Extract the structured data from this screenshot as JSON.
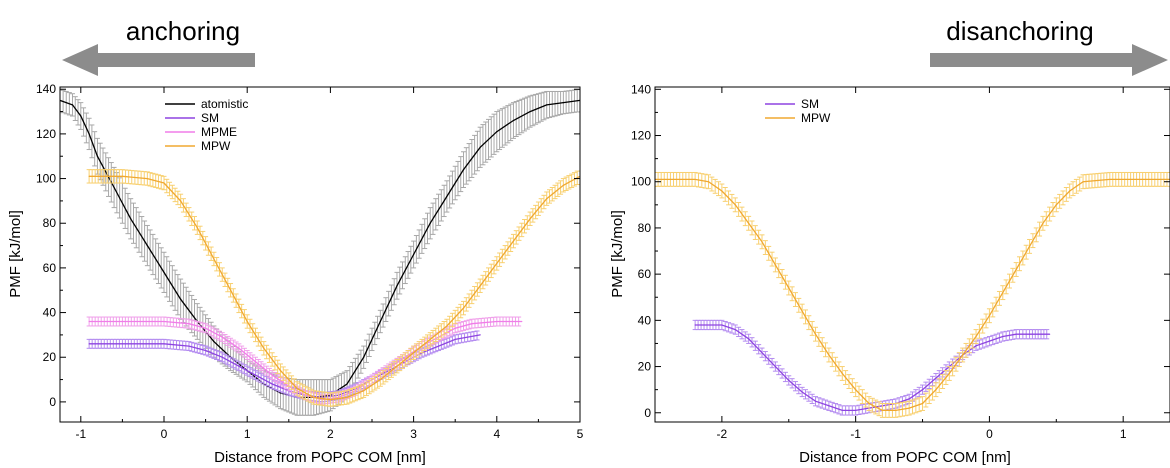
{
  "annotations": {
    "left_arrow_label": "anchoring",
    "right_arrow_label": "disanchoring",
    "arrow_color": "#8c8c8c"
  },
  "chart_data": [
    {
      "type": "line",
      "panel": "left",
      "xlabel": "Distance from POPC COM [nm]",
      "ylabel": "PMF [kJ/mol]",
      "xlim": [
        -1.25,
        5.0
      ],
      "ylim": [
        -9,
        141
      ],
      "xticks": [
        -1,
        0,
        1,
        2,
        3,
        4,
        5
      ],
      "yticks": [
        0,
        20,
        40,
        60,
        80,
        100,
        120,
        140
      ],
      "error_bars": true,
      "legend_position": "top-left",
      "series": [
        {
          "name": "atomistic",
          "color": "#000000",
          "error_color": "#a8a8a8",
          "points": [
            [
              -1.25,
              135
            ],
            [
              -1.1,
              133
            ],
            [
              -1.0,
              128
            ],
            [
              -0.9,
              120
            ],
            [
              -0.8,
              110
            ],
            [
              -0.6,
              96
            ],
            [
              -0.4,
              82
            ],
            [
              -0.2,
              70
            ],
            [
              0.0,
              58
            ],
            [
              0.2,
              46
            ],
            [
              0.4,
              36
            ],
            [
              0.6,
              27
            ],
            [
              0.8,
              20
            ],
            [
              1.0,
              14
            ],
            [
              1.2,
              8
            ],
            [
              1.4,
              4
            ],
            [
              1.6,
              2
            ],
            [
              1.8,
              2
            ],
            [
              2.0,
              3
            ],
            [
              2.2,
              8
            ],
            [
              2.4,
              20
            ],
            [
              2.6,
              36
            ],
            [
              2.8,
              52
            ],
            [
              3.0,
              66
            ],
            [
              3.2,
              80
            ],
            [
              3.4,
              92
            ],
            [
              3.6,
              104
            ],
            [
              3.8,
              114
            ],
            [
              4.0,
              121
            ],
            [
              4.2,
              126
            ],
            [
              4.4,
              130
            ],
            [
              4.6,
              133
            ],
            [
              4.8,
              134
            ],
            [
              5.0,
              135
            ]
          ],
          "errors": [
            5,
            5,
            6,
            7,
            8,
            9,
            9,
            9,
            9,
            9,
            8,
            7,
            6,
            5,
            6,
            7,
            8,
            8,
            7,
            6,
            5,
            5,
            6,
            6,
            7,
            7,
            8,
            9,
            9,
            8,
            7,
            6,
            5,
            5
          ]
        },
        {
          "name": "SM",
          "color": "#8e44e0",
          "error_color": "#b48cf0",
          "points": [
            [
              -0.9,
              26
            ],
            [
              -0.5,
              26
            ],
            [
              0.0,
              26
            ],
            [
              0.3,
              25
            ],
            [
              0.5,
              23
            ],
            [
              0.7,
              20
            ],
            [
              0.9,
              16
            ],
            [
              1.1,
              12
            ],
            [
              1.3,
              8
            ],
            [
              1.5,
              5
            ],
            [
              1.7,
              3
            ],
            [
              1.9,
              2
            ],
            [
              2.1,
              3
            ],
            [
              2.3,
              6
            ],
            [
              2.5,
              10
            ],
            [
              2.7,
              14
            ],
            [
              2.9,
              18
            ],
            [
              3.1,
              22
            ],
            [
              3.3,
              25
            ],
            [
              3.5,
              28
            ],
            [
              3.8,
              30
            ]
          ],
          "errors": [
            2,
            2,
            2,
            2,
            2,
            2,
            2,
            2,
            2,
            2,
            2,
            2,
            2,
            2,
            2,
            2,
            2,
            2,
            2,
            2,
            2
          ]
        },
        {
          "name": "MPME",
          "color": "#f07de8",
          "error_color": "#f0a0ea",
          "points": [
            [
              -0.9,
              36
            ],
            [
              -0.5,
              36
            ],
            [
              0.0,
              36
            ],
            [
              0.3,
              35
            ],
            [
              0.5,
              33
            ],
            [
              0.7,
              29
            ],
            [
              0.9,
              24
            ],
            [
              1.1,
              18
            ],
            [
              1.3,
              12
            ],
            [
              1.5,
              7
            ],
            [
              1.7,
              3
            ],
            [
              1.9,
              1
            ],
            [
              2.1,
              2
            ],
            [
              2.3,
              5
            ],
            [
              2.5,
              10
            ],
            [
              2.7,
              15
            ],
            [
              2.9,
              20
            ],
            [
              3.1,
              25
            ],
            [
              3.3,
              29
            ],
            [
              3.5,
              33
            ],
            [
              3.7,
              35
            ],
            [
              4.0,
              36
            ],
            [
              4.3,
              36
            ]
          ],
          "errors": [
            2,
            2,
            2,
            2,
            2,
            2,
            2,
            2,
            2,
            2,
            2,
            2,
            2,
            2,
            2,
            2,
            2,
            2,
            2,
            2,
            2,
            2,
            2
          ]
        },
        {
          "name": "MPW",
          "color": "#f0a830",
          "error_color": "#f8d070",
          "points": [
            [
              -0.9,
              101
            ],
            [
              -0.5,
              101
            ],
            [
              -0.2,
              100
            ],
            [
              0.0,
              98
            ],
            [
              0.2,
              90
            ],
            [
              0.4,
              78
            ],
            [
              0.6,
              64
            ],
            [
              0.8,
              50
            ],
            [
              1.0,
              36
            ],
            [
              1.2,
              24
            ],
            [
              1.4,
              14
            ],
            [
              1.6,
              6
            ],
            [
              1.8,
              2
            ],
            [
              2.0,
              1
            ],
            [
              2.2,
              2
            ],
            [
              2.4,
              5
            ],
            [
              2.6,
              10
            ],
            [
              2.8,
              16
            ],
            [
              3.0,
              22
            ],
            [
              3.2,
              28
            ],
            [
              3.4,
              34
            ],
            [
              3.6,
              42
            ],
            [
              3.8,
              52
            ],
            [
              4.0,
              62
            ],
            [
              4.2,
              72
            ],
            [
              4.4,
              82
            ],
            [
              4.6,
              91
            ],
            [
              4.8,
              97
            ],
            [
              5.0,
              101
            ]
          ],
          "errors": [
            3,
            3,
            3,
            3,
            3,
            3,
            3,
            3,
            3,
            3,
            3,
            3,
            3,
            3,
            3,
            3,
            3,
            3,
            3,
            3,
            3,
            3,
            3,
            3,
            3,
            3,
            3,
            3,
            3
          ]
        }
      ]
    },
    {
      "type": "line",
      "panel": "right",
      "xlabel": "Distance from POPC COM [nm]",
      "ylabel": "PMF [kJ/mol]",
      "xlim": [
        -2.5,
        1.35
      ],
      "ylim": [
        -4,
        141
      ],
      "xticks": [
        -2,
        -1,
        0,
        1
      ],
      "yticks": [
        0,
        20,
        40,
        60,
        80,
        100,
        120,
        140
      ],
      "error_bars": true,
      "legend_position": "top-left",
      "series": [
        {
          "name": "SM",
          "color": "#8e44e0",
          "error_color": "#b48cf0",
          "points": [
            [
              -2.2,
              38
            ],
            [
              -2.0,
              38
            ],
            [
              -1.9,
              36
            ],
            [
              -1.8,
              32
            ],
            [
              -1.7,
              26
            ],
            [
              -1.6,
              20
            ],
            [
              -1.5,
              14
            ],
            [
              -1.4,
              9
            ],
            [
              -1.3,
              5
            ],
            [
              -1.2,
              3
            ],
            [
              -1.1,
              1
            ],
            [
              -1.0,
              1
            ],
            [
              -0.9,
              2
            ],
            [
              -0.8,
              3
            ],
            [
              -0.7,
              4
            ],
            [
              -0.6,
              6
            ],
            [
              -0.5,
              10
            ],
            [
              -0.4,
              15
            ],
            [
              -0.3,
              20
            ],
            [
              -0.2,
              25
            ],
            [
              -0.1,
              29
            ],
            [
              0.0,
              31
            ],
            [
              0.1,
              33
            ],
            [
              0.2,
              34
            ],
            [
              0.3,
              34
            ],
            [
              0.45,
              34
            ]
          ],
          "errors": [
            2,
            2,
            2,
            2,
            2,
            2,
            2,
            2,
            2,
            2,
            2,
            2,
            2,
            2,
            2,
            2,
            2,
            2,
            2,
            2,
            2,
            2,
            2,
            2,
            2,
            2
          ]
        },
        {
          "name": "MPW",
          "color": "#f0a830",
          "error_color": "#f8d070",
          "points": [
            [
              -2.5,
              101
            ],
            [
              -2.2,
              101
            ],
            [
              -2.1,
              100
            ],
            [
              -2.0,
              96
            ],
            [
              -1.9,
              90
            ],
            [
              -1.8,
              82
            ],
            [
              -1.7,
              74
            ],
            [
              -1.6,
              64
            ],
            [
              -1.5,
              54
            ],
            [
              -1.4,
              44
            ],
            [
              -1.3,
              34
            ],
            [
              -1.2,
              25
            ],
            [
              -1.1,
              17
            ],
            [
              -1.0,
              10
            ],
            [
              -0.9,
              4
            ],
            [
              -0.8,
              1
            ],
            [
              -0.7,
              1
            ],
            [
              -0.6,
              2
            ],
            [
              -0.5,
              4
            ],
            [
              -0.4,
              10
            ],
            [
              -0.3,
              17
            ],
            [
              -0.2,
              25
            ],
            [
              -0.1,
              33
            ],
            [
              0.0,
              42
            ],
            [
              0.1,
              52
            ],
            [
              0.2,
              62
            ],
            [
              0.3,
              72
            ],
            [
              0.4,
              82
            ],
            [
              0.5,
              90
            ],
            [
              0.6,
              96
            ],
            [
              0.7,
              100
            ],
            [
              0.9,
              101
            ],
            [
              1.1,
              101
            ],
            [
              1.35,
              101
            ]
          ],
          "errors": [
            3,
            3,
            3,
            3,
            3,
            3,
            3,
            3,
            3,
            3,
            3,
            3,
            3,
            3,
            3,
            3,
            3,
            3,
            3,
            3,
            3,
            3,
            3,
            3,
            3,
            3,
            3,
            3,
            3,
            3,
            3,
            3,
            3,
            3
          ]
        }
      ]
    }
  ]
}
